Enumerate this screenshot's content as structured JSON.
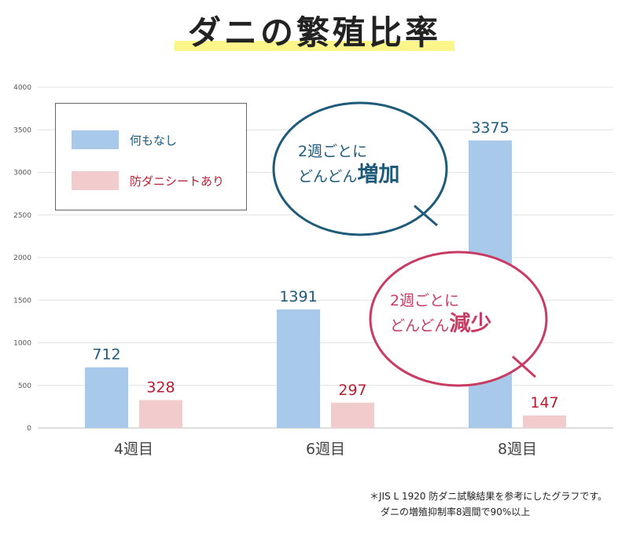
{
  "title": "ダニの繁殖比率",
  "chart_data": {
    "type": "bar",
    "categories": [
      "4週目",
      "6週目",
      "8週目"
    ],
    "series": [
      {
        "name": "何もなし",
        "values": [
          712,
          1391,
          3375
        ],
        "color": "#a9c9ea",
        "label_color": "#1e5a7a"
      },
      {
        "name": "防ダニシートあり",
        "values": [
          328,
          297,
          147
        ],
        "color": "#f2cccd",
        "label_color": "#b81e32"
      }
    ],
    "yticks": [
      "0",
      "500",
      "1000",
      "1500",
      "2000",
      "2500",
      "3000",
      "3500",
      "4000"
    ],
    "ylim": [
      0,
      4000
    ],
    "grid": true,
    "legend_position": "top-left"
  },
  "callouts": {
    "increase": {
      "line1": "2週ごとに",
      "line2_prefix": "どんどん",
      "emphasis": "増加",
      "color": "#1e5a7a"
    },
    "decrease": {
      "line1": "2週ごとに",
      "line2_prefix": "どんどん",
      "emphasis": "減少",
      "color": "#c83c64"
    }
  },
  "note": {
    "line1": "＊JIS L 1920 防ダニ試験結果を参考にしたグラフです。",
    "line2": "ダニの増殖抑制率8週間で90%以上"
  }
}
